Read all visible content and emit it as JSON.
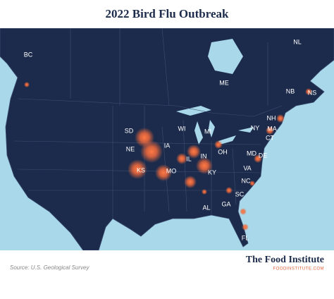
{
  "title": "2022 Bird Flu Outbreak",
  "regions": [
    "BC",
    "NL",
    "ME",
    "NB",
    "NS",
    "NH",
    "MA",
    "CT",
    "NY",
    "MI",
    "WI",
    "SD",
    "NE",
    "IA",
    "IL",
    "IN",
    "OH",
    "MD",
    "DE",
    "VA",
    "KY",
    "MO",
    "KS",
    "NC",
    "SC",
    "AL",
    "GA",
    "FL"
  ],
  "source": "Source: U.S. Geological Survey",
  "brand": {
    "name": "The Food Institute",
    "url": "FOODINSTITUTE.COM"
  }
}
